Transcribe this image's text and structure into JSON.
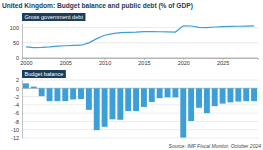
{
  "chart_data": [
    {
      "type": "line",
      "title": "United Kingdom: Budget balance and public debt (% of GDP)",
      "x": [
        2000,
        2001,
        2002,
        2003,
        2004,
        2005,
        2006,
        2007,
        2008,
        2009,
        2010,
        2011,
        2012,
        2013,
        2014,
        2015,
        2016,
        2017,
        2018,
        2019,
        2020,
        2021,
        2022,
        2023,
        2024,
        2025,
        2026,
        2027,
        2028,
        2029
      ],
      "series": [
        {
          "name": "Gross government debt",
          "color": "#3d9fd8",
          "values": [
            36.6,
            34.3,
            34.6,
            36.3,
            39.0,
            40.3,
            41.2,
            42.0,
            49.7,
            63.7,
            74.8,
            80.0,
            83.2,
            84.1,
            85.2,
            86.9,
            86.8,
            86.3,
            85.6,
            85.2,
            105.8,
            105.1,
            100.4,
            100.0,
            101.8,
            103.0,
            103.9,
            104.4,
            104.9,
            105.3
          ]
        }
      ],
      "xlim": [
        1999.5,
        2029.5
      ],
      "xticks": [
        2000,
        2005,
        2010,
        2015,
        2020,
        2025
      ],
      "ylim": [
        0,
        115
      ],
      "yticks": [
        0,
        50,
        100
      ],
      "grid": true
    },
    {
      "type": "bar",
      "categories": [
        2000,
        2001,
        2002,
        2003,
        2004,
        2005,
        2006,
        2007,
        2008,
        2009,
        2010,
        2011,
        2012,
        2013,
        2014,
        2015,
        2016,
        2017,
        2018,
        2019,
        2020,
        2021,
        2022,
        2023,
        2024,
        2025,
        2026,
        2027,
        2028,
        2029
      ],
      "series": [
        {
          "name": "Budget balance",
          "color": "#3d9fd8",
          "values": [
            1.2,
            0.4,
            -1.9,
            -3.1,
            -3.1,
            -3.1,
            -2.7,
            -2.6,
            -5.2,
            -10.1,
            -9.3,
            -7.5,
            -7.6,
            -5.5,
            -5.5,
            -4.5,
            -3.3,
            -2.4,
            -2.2,
            -2.2,
            -11.9,
            -7.9,
            -4.7,
            -6.0,
            -4.3,
            -3.7,
            -3.4,
            -3.2,
            -3.1,
            -3.1
          ]
        }
      ],
      "ylim": [
        -12,
        2
      ],
      "yticks": [
        2,
        0,
        -2,
        -4,
        -6,
        -8,
        -10,
        -12
      ],
      "grid": true,
      "tick_labels": "y",
      "annotations": [
        "Source: IMF Fiscal Monitor, October 2024"
      ]
    }
  ]
}
